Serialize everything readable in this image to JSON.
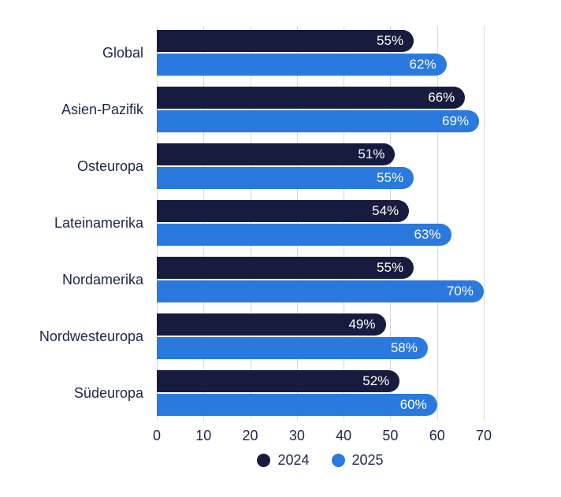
{
  "chart_data": {
    "type": "bar",
    "orientation": "horizontal",
    "title": "",
    "xlabel": "",
    "ylabel": "",
    "categories": [
      "Global",
      "Asien-Pazifik",
      "Osteuropa",
      "Lateinamerika",
      "Nordamerika",
      "Nordwesteuropa",
      "Südeuropa"
    ],
    "series": [
      {
        "name": "2024",
        "color": "#171C3F",
        "values": [
          55,
          66,
          51,
          54,
          55,
          49,
          52
        ]
      },
      {
        "name": "2025",
        "color": "#2A79DE",
        "values": [
          62,
          69,
          55,
          63,
          70,
          58,
          60
        ]
      }
    ],
    "value_suffix": "%",
    "xlim": [
      0,
      70
    ],
    "x_ticks": [
      0,
      10,
      20,
      30,
      40,
      50,
      60,
      70
    ],
    "grid": true,
    "gridline_color": "#D9D9D9",
    "label_color": "#1D2647",
    "value_label_color": "#FFFFFF",
    "legend_position": "bottom"
  }
}
